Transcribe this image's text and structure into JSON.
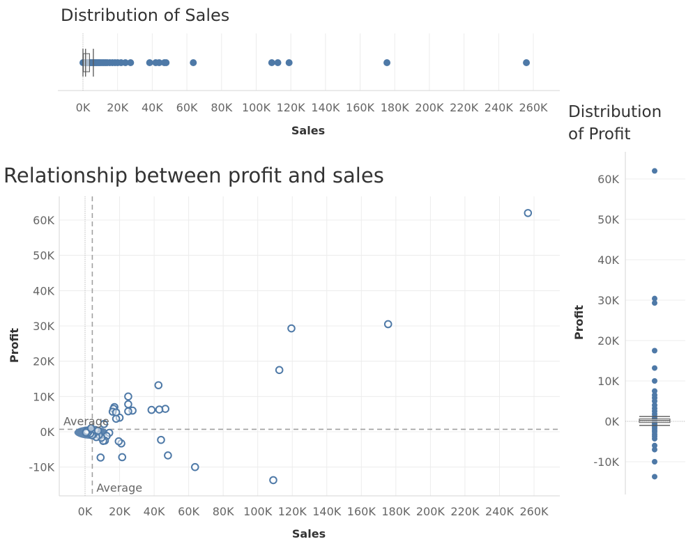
{
  "colors": {
    "mark": "#4e79a7",
    "grid": "#ececec",
    "average": "#a0a0a0",
    "box": "#555555"
  },
  "chart_data": [
    {
      "id": "sales_dist",
      "type": "scatter",
      "title": "Distribution of Sales",
      "xlabel": "Sales",
      "xlim": [
        -6000,
        270000
      ],
      "xticks": [
        0,
        20000,
        40000,
        60000,
        80000,
        100000,
        120000,
        140000,
        160000,
        180000,
        200000,
        220000,
        240000,
        260000
      ],
      "xtick_labels": [
        "0K",
        "20K",
        "40K",
        "60K",
        "80K",
        "100K",
        "120K",
        "140K",
        "160K",
        "180K",
        "200K",
        "220K",
        "240K",
        "260K"
      ],
      "values": [
        0,
        500,
        900,
        1400,
        1800,
        2200,
        2700,
        3100,
        3600,
        4000,
        4500,
        5000,
        5600,
        6200,
        6800,
        7400,
        8000,
        8700,
        9300,
        10000,
        11000,
        12000,
        13000,
        14000,
        15500,
        17000,
        18500,
        20000,
        22000,
        24500,
        27500,
        38500,
        42000,
        44000,
        47000,
        48000,
        63700,
        109000,
        112500,
        119000,
        175500,
        256000
      ],
      "boxplot": {
        "lower_whisker": 0,
        "q1": 200,
        "median": 1500,
        "q3": 3800,
        "upper_whisker": 6000
      }
    },
    {
      "id": "profit_dist",
      "type": "scatter",
      "title": "Distribution of Profit",
      "ylabel": "Profit",
      "ylim": [
        -18000,
        66000
      ],
      "yticks": [
        -10000,
        0,
        10000,
        20000,
        30000,
        40000,
        50000,
        60000
      ],
      "ytick_labels": [
        "-10K",
        "0K",
        "10K",
        "20K",
        "30K",
        "40K",
        "50K",
        "60K"
      ],
      "values": [
        62000,
        30400,
        29300,
        17500,
        13200,
        10000,
        7500,
        6500,
        5800,
        5000,
        4000,
        3200,
        2500,
        1800,
        1200,
        700,
        300,
        0,
        -300,
        -700,
        -1200,
        -1700,
        -2200,
        -2600,
        -3200,
        -3700,
        -4300,
        -6000,
        -7000,
        -10000,
        -13700
      ],
      "boxplot": {
        "lower_whisker": -1000,
        "q1": -300,
        "median": 200,
        "q3": 600,
        "upper_whisker": 1200
      }
    },
    {
      "id": "scatter",
      "type": "scatter",
      "title": "Relationship between profit and sales",
      "xlabel": "Sales",
      "ylabel": "Profit",
      "xlim": [
        -15000,
        270000
      ],
      "ylim": [
        -18000,
        66000
      ],
      "xticks": [
        0,
        20000,
        40000,
        60000,
        80000,
        100000,
        120000,
        140000,
        160000,
        180000,
        200000,
        220000,
        240000,
        260000
      ],
      "xtick_labels": [
        "0K",
        "20K",
        "40K",
        "60K",
        "80K",
        "100K",
        "120K",
        "140K",
        "160K",
        "180K",
        "200K",
        "220K",
        "240K",
        "260K"
      ],
      "yticks": [
        -10000,
        0,
        10000,
        20000,
        30000,
        40000,
        50000,
        60000
      ],
      "ytick_labels": [
        "-10K",
        "0K",
        "10K",
        "20K",
        "30K",
        "40K",
        "50K",
        "60K"
      ],
      "reference_lines": {
        "sales_average": 4200,
        "sales_label": "Average",
        "profit_average": 700,
        "profit_label": "Average"
      },
      "points": [
        {
          "x": 256500,
          "y": 62000
        },
        {
          "x": 175500,
          "y": 30500
        },
        {
          "x": 119500,
          "y": 29300
        },
        {
          "x": 112500,
          "y": 17500
        },
        {
          "x": 109000,
          "y": -13700
        },
        {
          "x": 63700,
          "y": -10000
        },
        {
          "x": 48000,
          "y": -6700
        },
        {
          "x": 46500,
          "y": 6500
        },
        {
          "x": 44000,
          "y": -2300
        },
        {
          "x": 42500,
          "y": 13200
        },
        {
          "x": 43000,
          "y": 6300
        },
        {
          "x": 38500,
          "y": 6200
        },
        {
          "x": 25000,
          "y": 10000
        },
        {
          "x": 25000,
          "y": 7800
        },
        {
          "x": 27500,
          "y": 6000
        },
        {
          "x": 25000,
          "y": 5800
        },
        {
          "x": 21000,
          "y": -3300
        },
        {
          "x": 19500,
          "y": -2700
        },
        {
          "x": 21500,
          "y": -7200
        },
        {
          "x": 20000,
          "y": 4000
        },
        {
          "x": 17000,
          "y": 7000
        },
        {
          "x": 16500,
          "y": 6500
        },
        {
          "x": 16000,
          "y": 5700
        },
        {
          "x": 18000,
          "y": 5500
        },
        {
          "x": 18000,
          "y": 3700
        },
        {
          "x": 14000,
          "y": -300
        },
        {
          "x": 12500,
          "y": -1200
        },
        {
          "x": 11500,
          "y": -2500
        },
        {
          "x": 10500,
          "y": -2600
        },
        {
          "x": 9000,
          "y": -7300
        },
        {
          "x": 9500,
          "y": -1700
        },
        {
          "x": 8000,
          "y": -900
        },
        {
          "x": 6500,
          "y": -1500
        },
        {
          "x": 5000,
          "y": -600
        },
        {
          "x": 4000,
          "y": -1000
        },
        {
          "x": 3000,
          "y": -500
        },
        {
          "x": 2000,
          "y": 0
        },
        {
          "x": 1500,
          "y": -300
        },
        {
          "x": 1000,
          "y": 200
        },
        {
          "x": 500,
          "y": -200
        },
        {
          "x": 6000,
          "y": 500
        },
        {
          "x": 7500,
          "y": 300
        },
        {
          "x": 3500,
          "y": 1000
        },
        {
          "x": 11000,
          "y": 2200
        }
      ]
    }
  ]
}
